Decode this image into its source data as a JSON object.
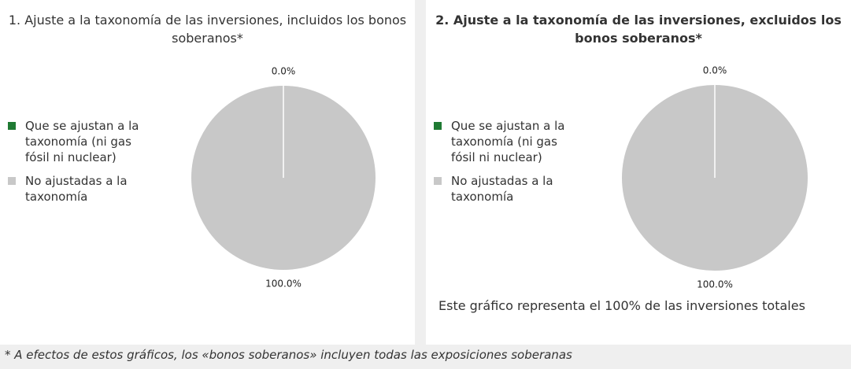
{
  "chart_data": [
    {
      "type": "pie",
      "title": "1. Ajuste a la taxonomía de las inversiones, incluidos los bonos soberanos*",
      "categories": [
        "Que se ajustan a la taxonomía (ni gas fósil ni nuclear)",
        "No ajustadas a la taxonomía"
      ],
      "values": [
        0.0,
        100.0
      ],
      "value_labels": [
        "0.0%",
        "100.0%"
      ],
      "colors": [
        "#1f7a33",
        "#c8c8c8"
      ],
      "legend": "left"
    },
    {
      "type": "pie",
      "title": "2. Ajuste a la taxonomía de las inversiones, excluidos los bonos soberanos*",
      "categories": [
        "Que se ajustan a la taxonomía (ni gas fósil ni nuclear)",
        "No ajustadas a la taxonomía"
      ],
      "values": [
        0.0,
        100.0
      ],
      "value_labels": [
        "0.0%",
        "100.0%"
      ],
      "colors": [
        "#1f7a33",
        "#c8c8c8"
      ],
      "legend": "left"
    }
  ],
  "note": "Este gráfico representa el 100% de las inversiones totales",
  "footnote": "* A efectos de estos gráficos, los «bonos soberanos» incluyen todas las exposiciones soberanas"
}
